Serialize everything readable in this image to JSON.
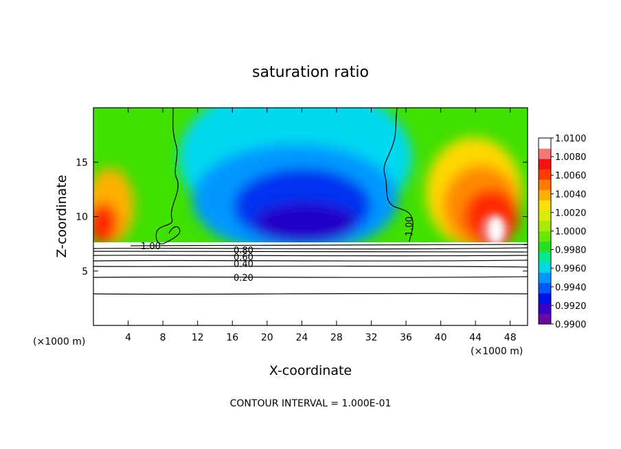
{
  "chart_data": {
    "type": "heatmap",
    "title": "saturation ratio",
    "xlabel": "X-coordinate",
    "ylabel": "Z-coordinate",
    "x_unit_left": "(×1000 m)",
    "x_unit_right": "(×1000 m)",
    "xlim": [
      0,
      50
    ],
    "ylim": [
      0,
      20
    ],
    "x_ticks": [
      4,
      8,
      12,
      16,
      20,
      24,
      28,
      32,
      36,
      40,
      44,
      48
    ],
    "y_ticks": [
      5,
      10,
      15
    ],
    "colorbar": {
      "min": 0.99,
      "max": 1.01,
      "labels": [
        "1.0100",
        "1.0080",
        "1.0060",
        "1.0040",
        "1.0020",
        "1.0000",
        "0.9980",
        "0.9960",
        "0.9940",
        "0.9920",
        "0.9900"
      ],
      "colors": [
        "#6a0aa0",
        "#3a00c8",
        "#0010e8",
        "#0058ff",
        "#0098ff",
        "#00d8e8",
        "#00e890",
        "#28e020",
        "#68e800",
        "#a8ea00",
        "#dcec00",
        "#f8e000",
        "#ffb000",
        "#ff7800",
        "#ff3c00",
        "#f21212",
        "#f07878",
        "#ffffff"
      ]
    },
    "contour_labels": [
      "1.00",
      "1.00",
      "0.80",
      "0.60",
      "0.40",
      "0.20"
    ],
    "contour_interval_note": "CONTOUR INTERVAL = 1.000E-01",
    "grid": false
  }
}
